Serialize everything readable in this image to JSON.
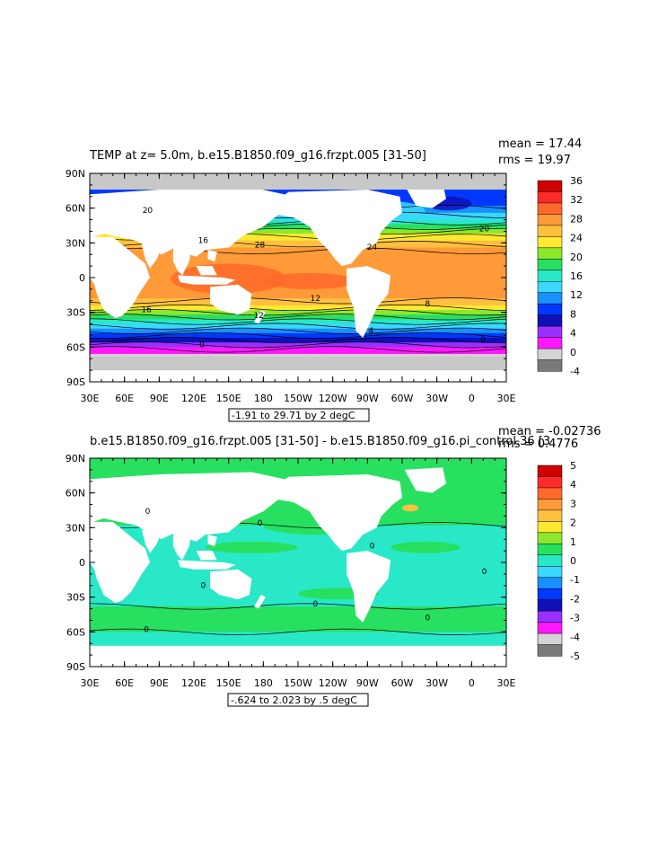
{
  "colors": {
    "land": "#ffffff",
    "ice_gray": "#c8c8c8"
  },
  "panels": [
    {
      "title": "TEMP at z=   5.0m, b.e15.B1850.f09_g16.frzpt.005 [31-50]",
      "stats": [
        "mean = 17.44",
        "rms = 19.97"
      ],
      "range_label": "-1.91 to 29.71 by 2 degC",
      "lat_ticks": [
        "90N",
        "60N",
        "30N",
        "0",
        "30S",
        "60S",
        "90S"
      ],
      "lon_ticks": [
        "30E",
        "60E",
        "90E",
        "120E",
        "150E",
        "180",
        "150W",
        "120W",
        "90W",
        "60W",
        "30W",
        "0",
        "30E"
      ],
      "colorbar": {
        "labels": [
          "36",
          "32",
          "28",
          "24",
          "20",
          "16",
          "12",
          "8",
          "4",
          "0",
          "-4"
        ],
        "colors": [
          "#d00000",
          "#ff2a2a",
          "#ff6a2a",
          "#ff9a38",
          "#ffc040",
          "#ffe830",
          "#8be82a",
          "#28e060",
          "#28e8c8",
          "#3ad8ff",
          "#1890ff",
          "#0038ff",
          "#1010b8",
          "#9a30ff",
          "#ff18ff",
          "#d4d4d4",
          "#7a7a7a"
        ]
      },
      "contour_labels": [
        "20",
        "28",
        "24",
        "20",
        "16",
        "12",
        "8",
        "16",
        "12",
        "4",
        "0",
        "0"
      ]
    },
    {
      "title": "b.e15.B1850.f09_g16.frzpt.005 [31-50] - b.e15.B1850.f09_g16.pi_control.36 [3",
      "stats": [
        "mean = -0.02736",
        "rms = 0.4776"
      ],
      "range_label": "-.624 to 2.023 by .5 degC",
      "lat_ticks": [
        "90N",
        "60N",
        "30N",
        "0",
        "30S",
        "60S",
        "90S"
      ],
      "lon_ticks": [
        "30E",
        "60E",
        "90E",
        "120E",
        "150E",
        "180",
        "150W",
        "120W",
        "90W",
        "60W",
        "30W",
        "0",
        "30E"
      ],
      "colorbar": {
        "labels": [
          "5",
          "4",
          "3",
          "2",
          "1",
          "0",
          "-1",
          "-2",
          "-3",
          "-4",
          "-5"
        ],
        "colors": [
          "#d00000",
          "#ff2a2a",
          "#ff6a2a",
          "#ff9a38",
          "#ffc040",
          "#ffe830",
          "#8be82a",
          "#28e060",
          "#28e8c8",
          "#3ad8ff",
          "#1890ff",
          "#0038ff",
          "#1010b8",
          "#9a30ff",
          "#ff18ff",
          "#d4d4d4",
          "#7a7a7a"
        ]
      },
      "contour_labels": [
        "0",
        "0",
        "0",
        "0",
        "0",
        "0",
        "0",
        "0"
      ]
    }
  ]
}
